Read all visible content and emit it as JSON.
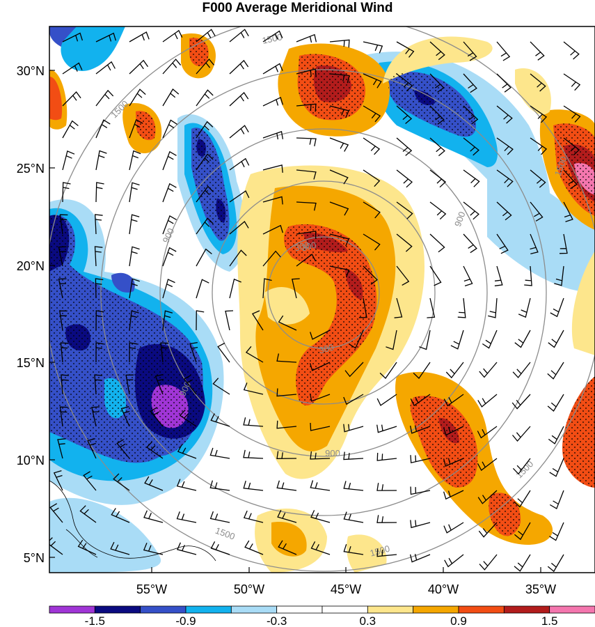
{
  "title": "F000 Average Meridional Wind",
  "axes": {
    "lat_ticks": [
      "30°N",
      "25°N",
      "20°N",
      "15°N",
      "10°N",
      "5°N"
    ],
    "lon_ticks": [
      "55°W",
      "50°W",
      "45°W",
      "40°W",
      "35°W"
    ]
  },
  "colorbar": {
    "colors": [
      "#a035d6",
      "#0a0a80",
      "#3550c8",
      "#12b2ee",
      "#a9dcf6",
      "#ffffff",
      "#ffffff",
      "#fde68c",
      "#f5a700",
      "#f24d14",
      "#b21c1c",
      "#f476ae"
    ],
    "labels": [
      "-1.5",
      "-0.9",
      "-0.3",
      "0.3",
      "0.9",
      "1.5"
    ]
  },
  "ring_labels": [
    "1500",
    "1500",
    "1500",
    "900",
    "900",
    "900",
    "900",
    "300",
    "300",
    "300",
    "1500",
    "1500",
    "1500"
  ],
  "colors": {
    "strong_neg": "#0a0a80",
    "neg": "#3550c8",
    "mid_neg": "#12b2ee",
    "weak_neg": "#a9dcf6",
    "weak_pos": "#fde68c",
    "pos": "#f5a700",
    "mid_pos": "#f24d14",
    "strong_pos": "#b21c1c",
    "extreme_pos": "#f476ae",
    "extreme_neg": "#a035d6",
    "ring": "#8c8c8c"
  }
}
